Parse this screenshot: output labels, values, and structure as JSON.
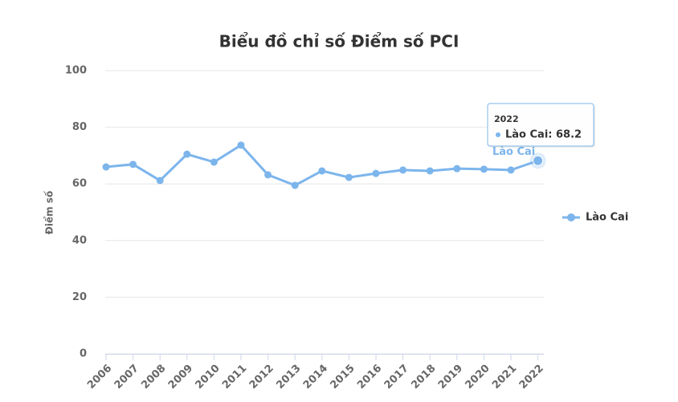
{
  "chart_data": {
    "type": "line",
    "title": "Biểu đồ chỉ số Điểm số PCI",
    "y_label": "Điểm số",
    "categories": [
      "2006",
      "2007",
      "2008",
      "2009",
      "2010",
      "2011",
      "2012",
      "2013",
      "2014",
      "2015",
      "2016",
      "2017",
      "2018",
      "2019",
      "2020",
      "2021",
      "2022"
    ],
    "series": [
      {
        "name": "Lào Cai",
        "color": "#7cb5ec",
        "values": [
          66.0,
          66.9,
          61.2,
          70.5,
          67.7,
          73.7,
          63.2,
          59.5,
          64.6,
          62.3,
          63.7,
          64.9,
          64.6,
          65.4,
          65.2,
          64.9,
          68.2
        ]
      }
    ],
    "ylim": [
      0,
      100
    ],
    "yticks": [
      0,
      20,
      40,
      60,
      80,
      100
    ],
    "grid": true,
    "legend": "right",
    "tooltip": {
      "text": "Lào Cai: 68.2"
    }
  }
}
